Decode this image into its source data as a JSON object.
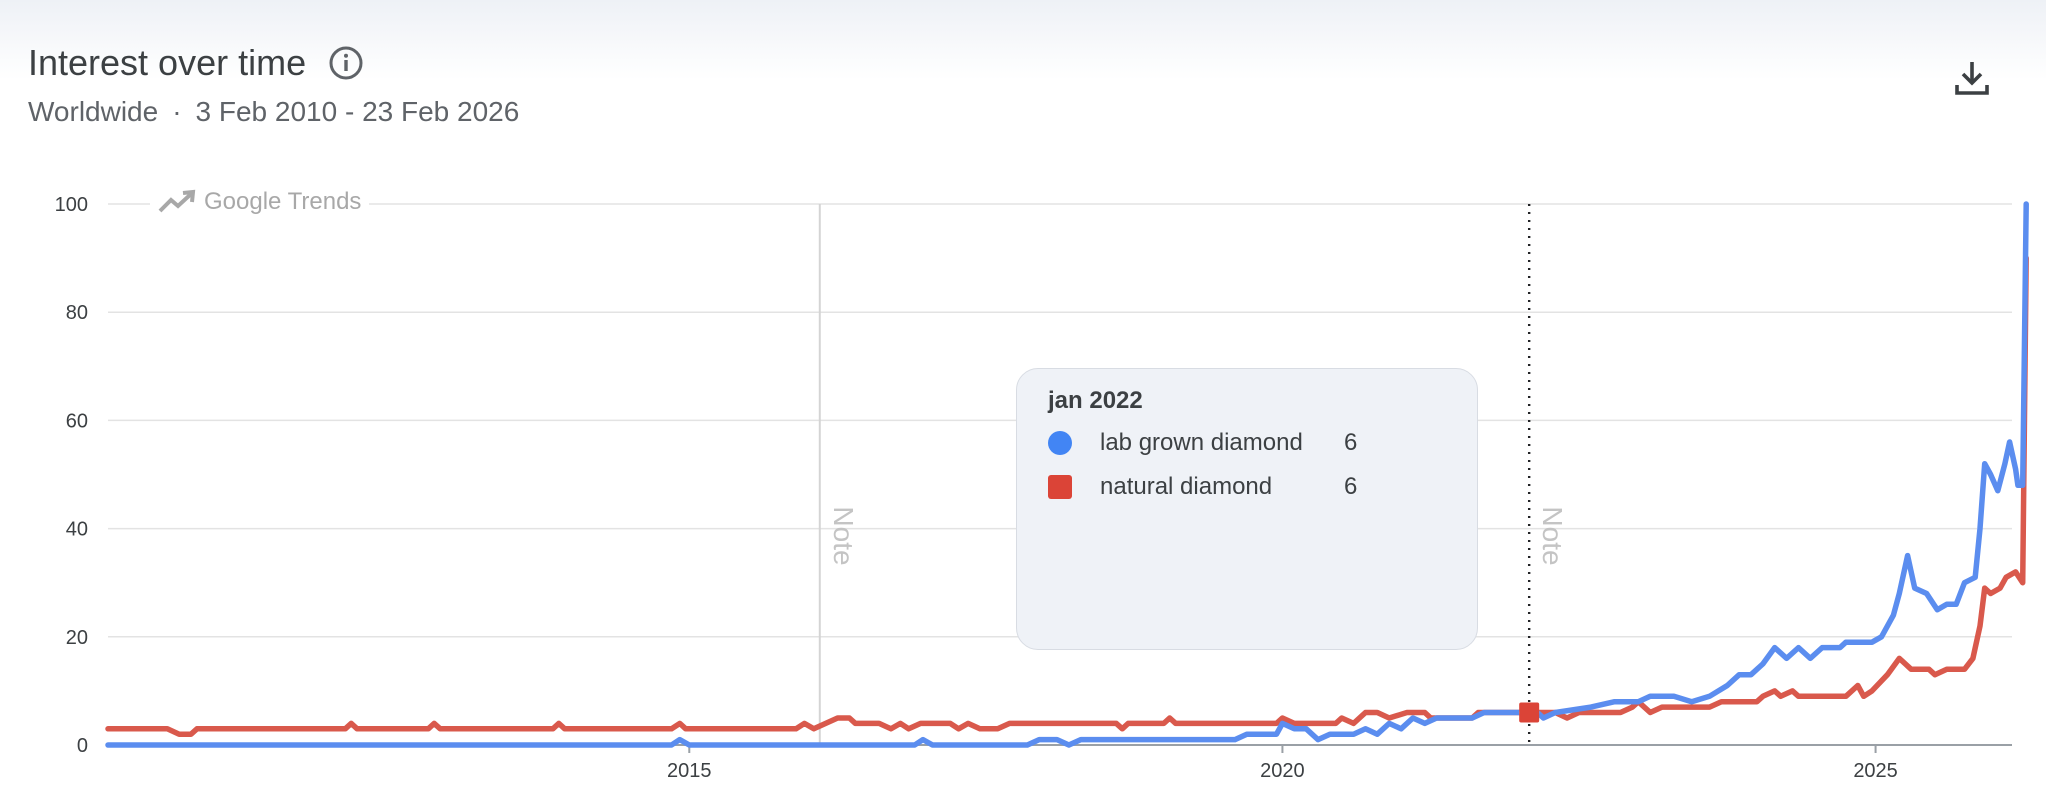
{
  "header": {
    "title": "Interest over time",
    "region": "Worldwide",
    "separator": "·",
    "date_range": "3 Feb 2010 - 23 Feb 2026",
    "info_icon": "info-icon",
    "download_icon": "download-icon"
  },
  "watermark": {
    "text": "Google Trends",
    "icon": "trending-up-icon"
  },
  "tooltip": {
    "date": "jan 2022",
    "rows": [
      {
        "name": "lab grown diamond",
        "value": "6",
        "color": "#4285f4",
        "marker": "circle"
      },
      {
        "name": "natural diamond",
        "value": "6",
        "color": "#db4437",
        "marker": "square"
      }
    ]
  },
  "notes": [
    {
      "date": 2016.1,
      "label": "Note",
      "style": "solid"
    },
    {
      "date": 2022.08,
      "label": "Note",
      "style": "dotted"
    }
  ],
  "colors": {
    "lab": "#5b8def",
    "natural": "#d9594c",
    "grid": "#e3e3e3",
    "axis": "#9aa0a6"
  },
  "chart_data": {
    "type": "line",
    "title": "Interest over time",
    "xlabel": "",
    "ylabel": "",
    "x_range": [
      2010.1,
      2026.15
    ],
    "ylim": [
      0,
      100
    ],
    "yticks": [
      0,
      20,
      40,
      60,
      80,
      100
    ],
    "xticks": [
      {
        "value": 2015,
        "label": "2015"
      },
      {
        "value": 2020,
        "label": "2020"
      },
      {
        "value": 2025,
        "label": "2025"
      }
    ],
    "grid": true,
    "highlight": {
      "date": 2022.08,
      "label": "jan 2022"
    },
    "series": [
      {
        "name": "lab grown diamond",
        "color": "#5b8def",
        "points": [
          [
            2010.1,
            0
          ],
          [
            2014.85,
            0
          ],
          [
            2014.92,
            1
          ],
          [
            2015.0,
            0
          ],
          [
            2016.9,
            0
          ],
          [
            2016.97,
            1
          ],
          [
            2017.05,
            0
          ],
          [
            2017.85,
            0
          ],
          [
            2017.95,
            1
          ],
          [
            2018.1,
            1
          ],
          [
            2018.2,
            0
          ],
          [
            2018.3,
            1
          ],
          [
            2019.6,
            1
          ],
          [
            2019.7,
            2
          ],
          [
            2019.95,
            2
          ],
          [
            2020.0,
            4
          ],
          [
            2020.1,
            3
          ],
          [
            2020.2,
            3
          ],
          [
            2020.3,
            1
          ],
          [
            2020.4,
            2
          ],
          [
            2020.6,
            2
          ],
          [
            2020.7,
            3
          ],
          [
            2020.8,
            2
          ],
          [
            2020.9,
            4
          ],
          [
            2021.0,
            3
          ],
          [
            2021.1,
            5
          ],
          [
            2021.2,
            4
          ],
          [
            2021.3,
            5
          ],
          [
            2021.6,
            5
          ],
          [
            2021.7,
            6
          ],
          [
            2022.08,
            6
          ],
          [
            2022.15,
            6
          ],
          [
            2022.2,
            5
          ],
          [
            2022.3,
            6
          ],
          [
            2022.6,
            7
          ],
          [
            2022.8,
            8
          ],
          [
            2023.0,
            8
          ],
          [
            2023.1,
            9
          ],
          [
            2023.3,
            9
          ],
          [
            2023.45,
            8
          ],
          [
            2023.6,
            9
          ],
          [
            2023.75,
            11
          ],
          [
            2023.85,
            13
          ],
          [
            2023.95,
            13
          ],
          [
            2024.05,
            15
          ],
          [
            2024.15,
            18
          ],
          [
            2024.25,
            16
          ],
          [
            2024.35,
            18
          ],
          [
            2024.45,
            16
          ],
          [
            2024.55,
            18
          ],
          [
            2024.7,
            18
          ],
          [
            2024.75,
            19
          ],
          [
            2024.85,
            19
          ],
          [
            2024.97,
            19
          ],
          [
            2025.05,
            20
          ],
          [
            2025.15,
            24
          ],
          [
            2025.2,
            28
          ],
          [
            2025.27,
            35
          ],
          [
            2025.33,
            29
          ],
          [
            2025.43,
            28
          ],
          [
            2025.52,
            25
          ],
          [
            2025.6,
            26
          ],
          [
            2025.68,
            26
          ],
          [
            2025.75,
            30
          ],
          [
            2025.84,
            31
          ],
          [
            2025.88,
            40
          ],
          [
            2025.92,
            52
          ],
          [
            2025.97,
            50
          ],
          [
            2026.03,
            47
          ],
          [
            2026.09,
            52
          ],
          [
            2026.13,
            56
          ],
          [
            2026.18,
            51
          ],
          [
            2026.2,
            48
          ],
          [
            2026.24,
            48
          ],
          [
            2026.27,
            100
          ]
        ]
      },
      {
        "name": "natural diamond",
        "color": "#d9594c",
        "points": [
          [
            2010.1,
            3
          ],
          [
            2010.6,
            3
          ],
          [
            2010.7,
            2
          ],
          [
            2010.8,
            2
          ],
          [
            2010.85,
            3
          ],
          [
            2012.1,
            3
          ],
          [
            2012.15,
            4
          ],
          [
            2012.2,
            3
          ],
          [
            2012.8,
            3
          ],
          [
            2012.85,
            4
          ],
          [
            2012.9,
            3
          ],
          [
            2013.85,
            3
          ],
          [
            2013.9,
            4
          ],
          [
            2013.95,
            3
          ],
          [
            2014.85,
            3
          ],
          [
            2014.92,
            4
          ],
          [
            2014.97,
            3
          ],
          [
            2015.9,
            3
          ],
          [
            2015.97,
            4
          ],
          [
            2016.05,
            3
          ],
          [
            2016.15,
            4
          ],
          [
            2016.25,
            5
          ],
          [
            2016.35,
            5
          ],
          [
            2016.4,
            4
          ],
          [
            2016.6,
            4
          ],
          [
            2016.7,
            3
          ],
          [
            2016.78,
            4
          ],
          [
            2016.85,
            3
          ],
          [
            2016.95,
            4
          ],
          [
            2017.2,
            4
          ],
          [
            2017.27,
            3
          ],
          [
            2017.35,
            4
          ],
          [
            2017.45,
            3
          ],
          [
            2017.6,
            3
          ],
          [
            2017.7,
            4
          ],
          [
            2018.6,
            4
          ],
          [
            2018.65,
            3
          ],
          [
            2018.7,
            4
          ],
          [
            2019.0,
            4
          ],
          [
            2019.05,
            5
          ],
          [
            2019.1,
            4
          ],
          [
            2019.95,
            4
          ],
          [
            2020.0,
            5
          ],
          [
            2020.1,
            4
          ],
          [
            2020.45,
            4
          ],
          [
            2020.5,
            5
          ],
          [
            2020.6,
            4
          ],
          [
            2020.7,
            6
          ],
          [
            2020.8,
            6
          ],
          [
            2020.9,
            5
          ],
          [
            2021.05,
            6
          ],
          [
            2021.2,
            6
          ],
          [
            2021.25,
            5
          ],
          [
            2021.6,
            5
          ],
          [
            2021.65,
            6
          ],
          [
            2022.08,
            6
          ],
          [
            2022.3,
            6
          ],
          [
            2022.4,
            5
          ],
          [
            2022.5,
            6
          ],
          [
            2022.85,
            6
          ],
          [
            2022.95,
            7
          ],
          [
            2023.0,
            8
          ],
          [
            2023.1,
            6
          ],
          [
            2023.2,
            7
          ],
          [
            2023.6,
            7
          ],
          [
            2023.7,
            8
          ],
          [
            2024.0,
            8
          ],
          [
            2024.05,
            9
          ],
          [
            2024.15,
            10
          ],
          [
            2024.2,
            9
          ],
          [
            2024.3,
            10
          ],
          [
            2024.35,
            9
          ],
          [
            2024.75,
            9
          ],
          [
            2024.85,
            11
          ],
          [
            2024.9,
            9
          ],
          [
            2024.97,
            10
          ],
          [
            2025.1,
            13
          ],
          [
            2025.2,
            16
          ],
          [
            2025.3,
            14
          ],
          [
            2025.45,
            14
          ],
          [
            2025.5,
            13
          ],
          [
            2025.6,
            14
          ],
          [
            2025.75,
            14
          ],
          [
            2025.82,
            16
          ],
          [
            2025.88,
            22
          ],
          [
            2025.92,
            29
          ],
          [
            2025.97,
            28
          ],
          [
            2026.05,
            29
          ],
          [
            2026.1,
            31
          ],
          [
            2026.18,
            32
          ],
          [
            2026.21,
            31
          ],
          [
            2026.24,
            30
          ],
          [
            2026.27,
            90
          ]
        ]
      }
    ]
  }
}
